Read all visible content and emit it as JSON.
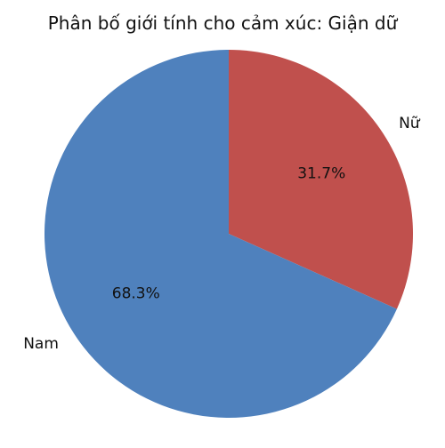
{
  "chart_data": {
    "type": "pie",
    "title": "Phân bố giới tính cho cảm xúc: Giận dữ",
    "slices": [
      {
        "label": "Nữ",
        "value": 31.7,
        "pct_label": "31.7%",
        "color": "#c0504d"
      },
      {
        "label": "Nam",
        "value": 68.3,
        "pct_label": "68.3%",
        "color": "#4f81bd"
      }
    ],
    "start_angle": "12 o'clock",
    "direction": "clockwise",
    "legend": "none"
  }
}
